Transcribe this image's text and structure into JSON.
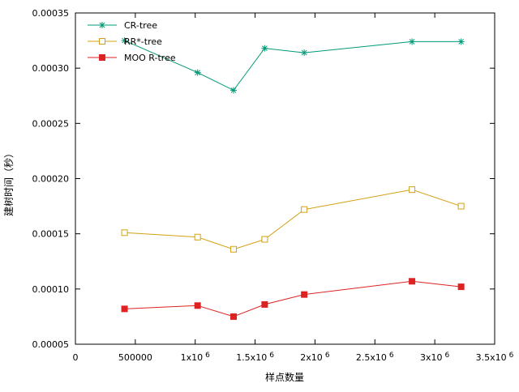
{
  "chart_data": {
    "type": "line",
    "xlabel": "样点数量",
    "ylabel": "建树时间（秒）",
    "xlim": [
      0,
      3500000
    ],
    "ylim": [
      5e-05,
      0.00035
    ],
    "x_ticks": [
      {
        "value": 0,
        "base": "0",
        "sup": ""
      },
      {
        "value": 500000,
        "base": "500000",
        "sup": ""
      },
      {
        "value": 1000000,
        "base": "1x10",
        "sup": "6"
      },
      {
        "value": 1500000,
        "base": "1.5x10",
        "sup": "6"
      },
      {
        "value": 2000000,
        "base": "2x10",
        "sup": "6"
      },
      {
        "value": 2500000,
        "base": "2.5x10",
        "sup": "6"
      },
      {
        "value": 3000000,
        "base": "3x10",
        "sup": "6"
      },
      {
        "value": 3500000,
        "base": "3.5x10",
        "sup": "6"
      }
    ],
    "y_ticks": [
      {
        "value": 5e-05,
        "label": "0.00005"
      },
      {
        "value": 0.0001,
        "label": "0.00010"
      },
      {
        "value": 0.00015,
        "label": "0.00015"
      },
      {
        "value": 0.0002,
        "label": "0.00020"
      },
      {
        "value": 0.00025,
        "label": "0.00025"
      },
      {
        "value": 0.0003,
        "label": "0.00030"
      },
      {
        "value": 0.00035,
        "label": "0.00035"
      }
    ],
    "grid": false,
    "legend_position": "top-left",
    "x": [
      410000,
      1020000,
      1320000,
      1580000,
      1910000,
      2810000,
      3220000
    ],
    "series": [
      {
        "name": "CR-tree",
        "marker": "asterisk",
        "color": "#009977",
        "values": [
          0.000325,
          0.000296,
          0.00028,
          0.000318,
          0.000314,
          0.000324,
          0.000324
        ]
      },
      {
        "name": "RR*-tree",
        "marker": "open-square",
        "color": "#d4a017",
        "values": [
          0.000151,
          0.000147,
          0.000136,
          0.000145,
          0.000172,
          0.00019,
          0.000175
        ]
      },
      {
        "name": "MOO R-tree",
        "marker": "filled-square",
        "color": "#dd2222",
        "values": [
          8.2e-05,
          8.5e-05,
          7.5e-05,
          8.6e-05,
          9.5e-05,
          0.000107,
          0.000102
        ]
      }
    ]
  }
}
